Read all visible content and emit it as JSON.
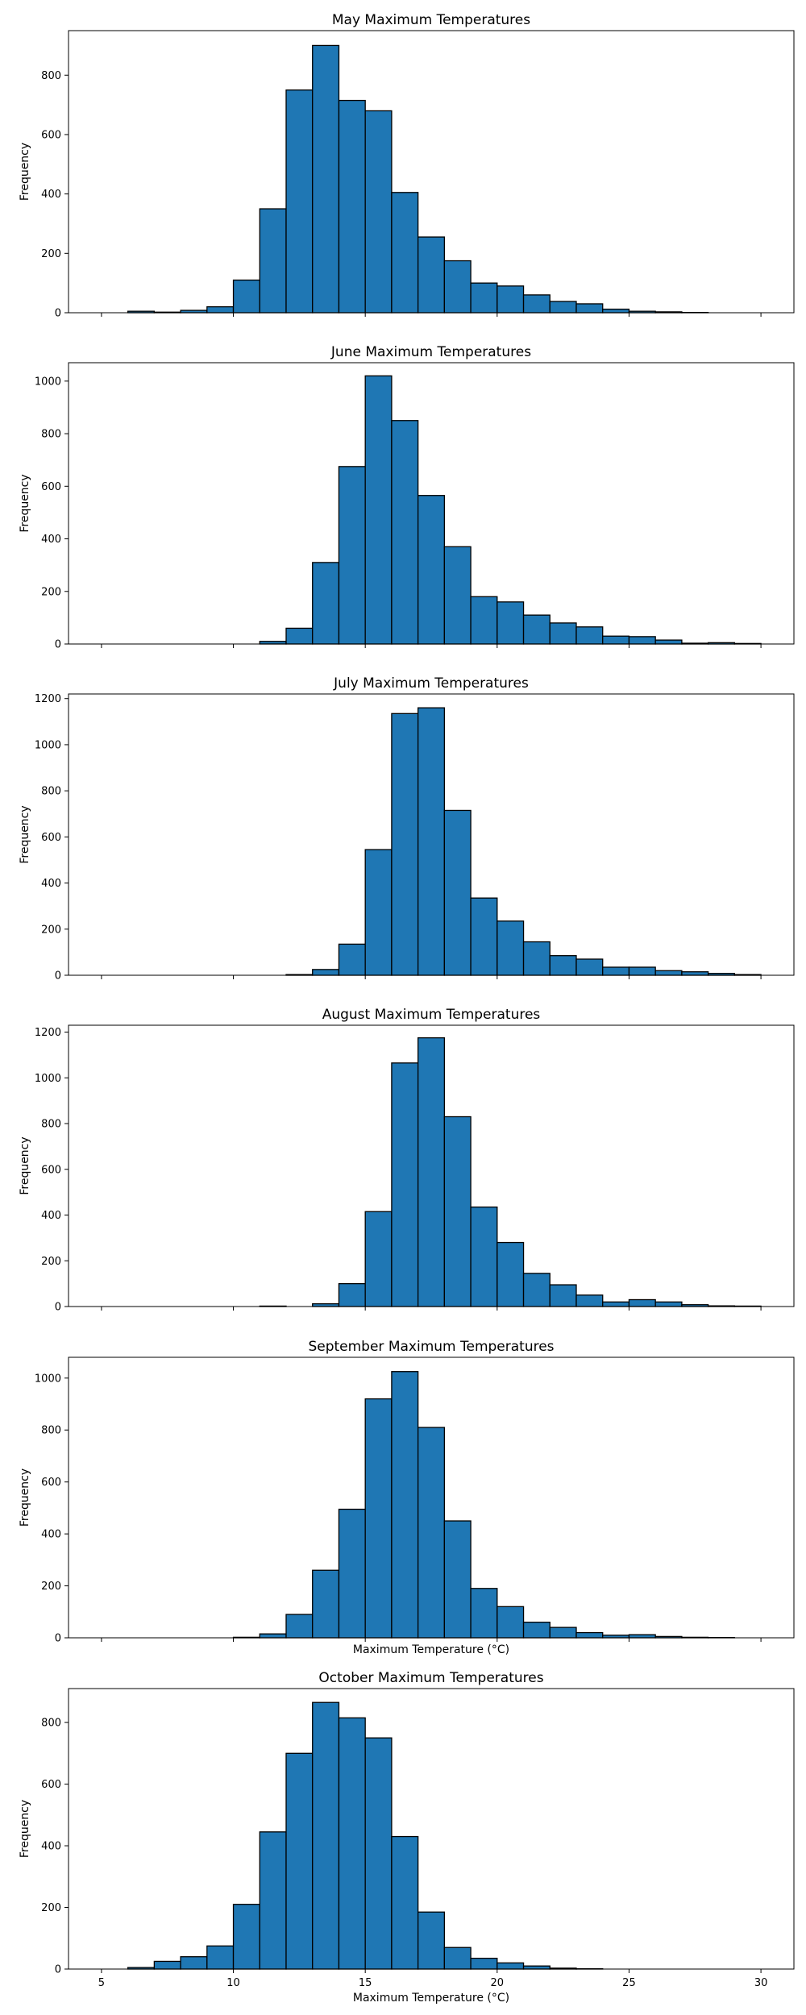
{
  "chart_data": [
    {
      "type": "bar",
      "title": "May Maximum Temperatures",
      "xlabel": "",
      "ylabel": "Frequency",
      "xlim": [
        3.75,
        31.25
      ],
      "ylim": [
        0,
        950
      ],
      "yticks": [
        0,
        200,
        400,
        600,
        800
      ],
      "xticks": [
        5,
        10,
        15,
        20,
        25,
        30
      ],
      "show_xticklabels": false,
      "bin_edges": [
        5,
        6,
        7,
        8,
        9,
        10,
        11,
        12,
        13,
        14,
        15,
        16,
        17,
        18,
        19,
        20,
        21,
        22,
        23,
        24,
        25,
        26,
        27,
        28,
        29,
        30
      ],
      "values": [
        0,
        5,
        2,
        8,
        20,
        110,
        350,
        750,
        900,
        715,
        680,
        405,
        255,
        175,
        100,
        90,
        60,
        38,
        30,
        12,
        5,
        3,
        1,
        0,
        0
      ]
    },
    {
      "type": "bar",
      "title": "June Maximum Temperatures",
      "xlabel": "",
      "ylabel": "Frequency",
      "xlim": [
        3.75,
        31.25
      ],
      "ylim": [
        0,
        1070
      ],
      "yticks": [
        0,
        200,
        400,
        600,
        800,
        1000
      ],
      "xticks": [
        5,
        10,
        15,
        20,
        25,
        30
      ],
      "show_xticklabels": false,
      "bin_edges": [
        5,
        6,
        7,
        8,
        9,
        10,
        11,
        12,
        13,
        14,
        15,
        16,
        17,
        18,
        19,
        20,
        21,
        22,
        23,
        24,
        25,
        26,
        27,
        28,
        29,
        30
      ],
      "values": [
        0,
        0,
        0,
        0,
        0,
        0,
        10,
        60,
        310,
        675,
        1020,
        850,
        565,
        370,
        180,
        160,
        110,
        80,
        65,
        30,
        28,
        15,
        3,
        5,
        2
      ]
    },
    {
      "type": "bar",
      "title": "July Maximum Temperatures",
      "xlabel": "",
      "ylabel": "Frequency",
      "xlim": [
        3.75,
        31.25
      ],
      "ylim": [
        0,
        1220
      ],
      "yticks": [
        0,
        200,
        400,
        600,
        800,
        1000,
        1200
      ],
      "xticks": [
        5,
        10,
        15,
        20,
        25,
        30
      ],
      "show_xticklabels": false,
      "bin_edges": [
        5,
        6,
        7,
        8,
        9,
        10,
        11,
        12,
        13,
        14,
        15,
        16,
        17,
        18,
        19,
        20,
        21,
        22,
        23,
        24,
        25,
        26,
        27,
        28,
        29,
        30
      ],
      "values": [
        0,
        0,
        0,
        0,
        0,
        0,
        0,
        3,
        25,
        135,
        545,
        1135,
        1160,
        715,
        335,
        235,
        145,
        85,
        70,
        35,
        35,
        20,
        15,
        8,
        3
      ]
    },
    {
      "type": "bar",
      "title": "August Maximum Temperatures",
      "xlabel": "",
      "ylabel": "Frequency",
      "xlim": [
        3.75,
        31.25
      ],
      "ylim": [
        0,
        1230
      ],
      "yticks": [
        0,
        200,
        400,
        600,
        800,
        1000,
        1200
      ],
      "xticks": [
        5,
        10,
        15,
        20,
        25,
        30
      ],
      "show_xticklabels": false,
      "bin_edges": [
        5,
        6,
        7,
        8,
        9,
        10,
        11,
        12,
        13,
        14,
        15,
        16,
        17,
        18,
        19,
        20,
        21,
        22,
        23,
        24,
        25,
        26,
        27,
        28,
        29,
        30
      ],
      "values": [
        0,
        0,
        0,
        0,
        0,
        0,
        2,
        0,
        12,
        100,
        415,
        1065,
        1175,
        830,
        435,
        280,
        145,
        95,
        50,
        20,
        30,
        20,
        8,
        3,
        2
      ]
    },
    {
      "type": "bar",
      "title": "September Maximum Temperatures",
      "xlabel": "Maximum Temperature (°C)",
      "ylabel": "Frequency",
      "xlim": [
        3.75,
        31.25
      ],
      "ylim": [
        0,
        1080
      ],
      "yticks": [
        0,
        200,
        400,
        600,
        800,
        1000
      ],
      "xticks": [
        5,
        10,
        15,
        20,
        25,
        30
      ],
      "show_xticklabels": false,
      "bin_edges": [
        5,
        6,
        7,
        8,
        9,
        10,
        11,
        12,
        13,
        14,
        15,
        16,
        17,
        18,
        19,
        20,
        21,
        22,
        23,
        24,
        25,
        26,
        27,
        28,
        29,
        30
      ],
      "values": [
        0,
        0,
        0,
        0,
        0,
        2,
        15,
        90,
        260,
        495,
        920,
        1025,
        810,
        450,
        190,
        120,
        60,
        40,
        20,
        10,
        12,
        5,
        2,
        1,
        0
      ]
    },
    {
      "type": "bar",
      "title": "October Maximum Temperatures",
      "xlabel": "Maximum Temperature (°C)",
      "ylabel": "Frequency",
      "xlim": [
        3.75,
        31.25
      ],
      "ylim": [
        0,
        910
      ],
      "yticks": [
        0,
        200,
        400,
        600,
        800
      ],
      "xticks": [
        5,
        10,
        15,
        20,
        25,
        30
      ],
      "show_xticklabels": true,
      "bin_edges": [
        5,
        6,
        7,
        8,
        9,
        10,
        11,
        12,
        13,
        14,
        15,
        16,
        17,
        18,
        19,
        20,
        21,
        22,
        23,
        24,
        25,
        26,
        27,
        28,
        29,
        30
      ],
      "values": [
        0,
        5,
        25,
        40,
        75,
        210,
        445,
        700,
        865,
        815,
        750,
        430,
        185,
        70,
        35,
        20,
        10,
        3,
        1,
        0,
        0,
        0,
        0,
        0,
        0
      ]
    }
  ],
  "colors": {
    "bar_fill": "#1f77b4",
    "bar_edge": "#000000",
    "axes": "#000000"
  }
}
